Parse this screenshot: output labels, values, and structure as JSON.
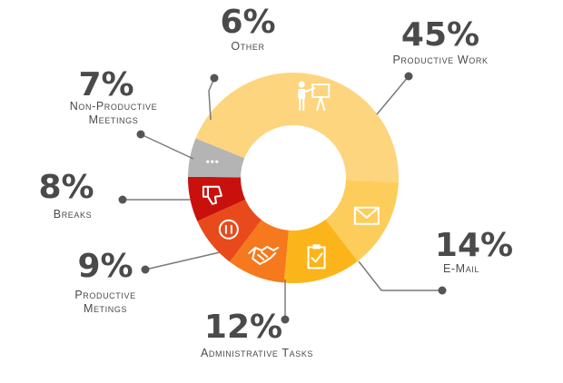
{
  "chart_data": {
    "type": "pie",
    "variant": "donut",
    "legend": "none",
    "slices": [
      {
        "name": "Productive Work",
        "value": 45,
        "value_label": "45%",
        "color": "#fdd57e",
        "icon": "presentation-icon"
      },
      {
        "name": "E-Mail",
        "value": 14,
        "value_label": "14%",
        "color": "#fdcd5c",
        "icon": "envelope-icon"
      },
      {
        "name": "Administrative Tasks",
        "value": 12,
        "value_label": "12%",
        "color": "#fbb51a",
        "icon": "clipboard-check-icon"
      },
      {
        "name": "Productive Metings",
        "value": 9,
        "value_label": "9%",
        "color": "#f6791d",
        "icon": "handshake-icon"
      },
      {
        "name": "Breaks",
        "value": 8,
        "value_label": "8%",
        "color": "#e84a1b",
        "icon": "pause-icon"
      },
      {
        "name": "Non-Productive Meetings",
        "value": 7,
        "value_label": "7%",
        "color": "#c8110d",
        "icon": "thumbs-down-icon"
      },
      {
        "name": "Other",
        "value": 6,
        "value_label": "6%",
        "color": "#b4b4b4",
        "icon": "ellipsis-icon"
      }
    ],
    "label_lines": {
      "Productive Work": [
        "Productive Work"
      ],
      "E-Mail": [
        "E-Mail"
      ],
      "Administrative Tasks": [
        "Administrative Tasks"
      ],
      "Productive Metings": [
        "Productive",
        "Metings"
      ],
      "Breaks": [
        "Breaks"
      ],
      "Non-Productive Meetings": [
        "Non-Productive",
        "Meetings"
      ],
      "Other": [
        "Other"
      ]
    }
  }
}
